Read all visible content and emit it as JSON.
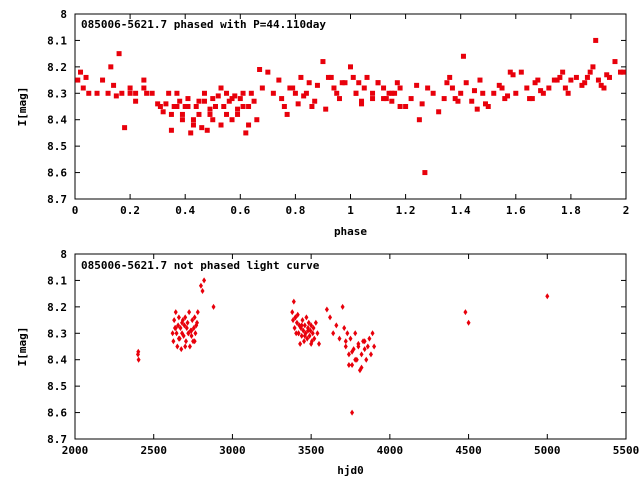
{
  "chart_data": [
    {
      "type": "scatter",
      "title": "085006-5621.7 phased with P=44.110day",
      "xlabel": "phase",
      "ylabel": "I[mag]",
      "xlim": [
        0,
        2
      ],
      "ylim": [
        8.7,
        8.0
      ],
      "y_inverted": true,
      "xticks": [
        "0",
        "0.2",
        "0.4",
        "0.6",
        "0.8",
        "1",
        "1.2",
        "1.4",
        "1.6",
        "1.8",
        "2"
      ],
      "yticks": [
        "8",
        "8.1",
        "8.2",
        "8.3",
        "8.4",
        "8.5",
        "8.6",
        "8.7"
      ],
      "grid": false,
      "marker_color": "#e8000b",
      "series": [
        {
          "x": [
            0.01,
            0.02,
            0.03,
            0.04,
            0.05,
            0.08,
            0.1,
            0.12,
            0.13,
            0.14,
            0.15,
            0.16,
            0.17,
            0.18,
            0.2,
            0.22,
            0.25,
            0.26,
            0.28,
            0.3,
            0.31,
            0.32,
            0.33,
            0.34,
            0.35,
            0.36,
            0.37,
            0.38,
            0.39,
            0.4,
            0.41,
            0.42,
            0.43,
            0.44,
            0.45,
            0.46,
            0.47,
            0.48,
            0.49,
            0.5,
            0.5,
            0.51,
            0.52,
            0.53,
            0.54,
            0.55,
            0.56,
            0.57,
            0.58,
            0.59,
            0.6,
            0.61,
            0.62,
            0.63,
            0.64,
            0.65,
            0.66,
            0.67,
            0.68,
            0.7,
            0.72,
            0.74,
            0.76,
            0.78,
            0.8,
            0.82,
            0.84,
            0.86,
            0.88,
            0.9,
            0.92,
            0.94,
            0.96,
            0.98,
            1.0,
            1.02,
            1.04,
            1.06,
            1.08,
            1.1,
            1.12,
            1.15,
            1.18,
            1.2,
            1.22,
            1.24,
            1.26,
            1.27,
            1.28,
            1.3,
            1.32,
            1.34,
            1.36,
            1.38,
            1.4,
            1.41,
            1.42,
            1.44,
            1.46,
            1.48,
            1.5,
            1.52,
            1.54,
            1.56,
            1.58,
            1.6,
            1.62,
            1.64,
            1.66,
            1.68,
            1.7,
            1.72,
            1.74,
            1.76,
            1.78,
            1.8,
            1.82,
            1.84,
            1.86,
            1.88,
            1.89,
            1.9,
            1.92,
            1.94,
            1.96,
            1.98,
            1.99,
            1.01,
            1.02,
            1.03,
            1.04,
            1.05,
            1.08,
            1.1,
            1.12,
            1.13,
            1.14,
            1.15,
            1.16,
            1.17,
            1.18,
            0.2,
            0.22,
            0.25,
            0.41,
            0.43,
            0.45,
            0.47,
            0.49,
            0.53,
            0.55,
            0.57,
            0.59,
            0.61,
            0.63,
            0.35,
            0.37,
            0.39,
            0.75,
            0.77,
            0.79,
            0.81,
            0.83,
            0.85,
            0.87,
            0.91,
            0.93,
            0.95,
            0.97,
            1.25,
            1.35,
            1.37,
            1.39,
            1.45,
            1.47,
            1.49,
            1.55,
            1.57,
            1.59,
            1.65,
            1.67,
            1.69,
            1.75,
            1.77,
            1.79,
            1.85,
            1.87,
            1.91,
            1.93
          ],
          "y": [
            8.25,
            8.22,
            8.28,
            8.24,
            8.3,
            8.3,
            8.25,
            8.3,
            8.2,
            8.27,
            8.31,
            8.15,
            8.3,
            8.43,
            8.28,
            8.3,
            8.25,
            8.3,
            8.3,
            8.34,
            8.35,
            8.37,
            8.34,
            8.3,
            8.44,
            8.35,
            8.3,
            8.33,
            8.38,
            8.35,
            8.32,
            8.45,
            8.4,
            8.35,
            8.33,
            8.43,
            8.3,
            8.44,
            8.38,
            8.32,
            8.4,
            8.35,
            8.31,
            8.42,
            8.35,
            8.3,
            8.33,
            8.4,
            8.31,
            8.36,
            8.32,
            8.35,
            8.45,
            8.42,
            8.3,
            8.33,
            8.4,
            8.21,
            8.28,
            8.22,
            8.3,
            8.25,
            8.35,
            8.28,
            8.3,
            8.24,
            8.3,
            8.35,
            8.27,
            8.18,
            8.24,
            8.28,
            8.32,
            8.26,
            8.2,
            8.3,
            8.33,
            8.24,
            8.3,
            8.26,
            8.32,
            8.3,
            8.28,
            8.35,
            8.32,
            8.27,
            8.34,
            8.6,
            8.28,
            8.3,
            8.37,
            8.32,
            8.24,
            8.32,
            8.3,
            8.16,
            8.26,
            8.33,
            8.36,
            8.3,
            8.35,
            8.3,
            8.27,
            8.32,
            8.22,
            8.3,
            8.22,
            8.28,
            8.32,
            8.25,
            8.3,
            8.28,
            8.25,
            8.24,
            8.28,
            8.25,
            8.24,
            8.27,
            8.24,
            8.2,
            8.1,
            8.25,
            8.28,
            8.24,
            8.18,
            8.22,
            8.22,
            8.24,
            8.3,
            8.26,
            8.34,
            8.28,
            8.32,
            8.26,
            8.28,
            8.32,
            8.3,
            8.33,
            8.3,
            8.26,
            8.35,
            8.3,
            8.33,
            8.28,
            8.35,
            8.42,
            8.38,
            8.33,
            8.36,
            8.28,
            8.38,
            8.32,
            8.38,
            8.3,
            8.35,
            8.38,
            8.35,
            8.4,
            8.32,
            8.38,
            8.28,
            8.34,
            8.31,
            8.26,
            8.33,
            8.36,
            8.24,
            8.3,
            8.26,
            8.4,
            8.26,
            8.28,
            8.33,
            8.29,
            8.25,
            8.34,
            8.28,
            8.31,
            8.23,
            8.32,
            8.26,
            8.29,
            8.25,
            8.22,
            8.3,
            8.26,
            8.22,
            8.27,
            8.23
          ]
        }
      ]
    },
    {
      "type": "scatter",
      "title": "085006-5621.7 not phased light curve",
      "xlabel": "hjd0",
      "ylabel": "I[mag]",
      "xlim": [
        2000,
        5500
      ],
      "ylim": [
        8.7,
        8.0
      ],
      "y_inverted": true,
      "xticks": [
        "2000",
        "2500",
        "3000",
        "3500",
        "4000",
        "4500",
        "5000",
        "5500"
      ],
      "yticks": [
        "8",
        "8.1",
        "8.2",
        "8.3",
        "8.4",
        "8.5",
        "8.6",
        "8.7"
      ],
      "grid": false,
      "marker_color": "#e8000b",
      "series": [
        {
          "x": [
            2400,
            2402,
            2404,
            2620,
            2625,
            2630,
            2635,
            2640,
            2645,
            2650,
            2655,
            2660,
            2665,
            2670,
            2675,
            2680,
            2685,
            2690,
            2695,
            2700,
            2705,
            2710,
            2715,
            2720,
            2725,
            2730,
            2735,
            2740,
            2745,
            2750,
            2755,
            2760,
            2765,
            2770,
            2775,
            2780,
            2800,
            2810,
            2820,
            2880,
            3380,
            3385,
            3390,
            3395,
            3400,
            3405,
            3410,
            3415,
            3420,
            3425,
            3430,
            3435,
            3440,
            3445,
            3450,
            3455,
            3460,
            3465,
            3470,
            3475,
            3480,
            3485,
            3490,
            3495,
            3500,
            3505,
            3510,
            3515,
            3520,
            3530,
            3540,
            3550,
            3600,
            3620,
            3640,
            3660,
            3680,
            3700,
            3710,
            3720,
            3730,
            3740,
            3750,
            3760,
            3770,
            3780,
            3790,
            3800,
            3810,
            3820,
            3830,
            3840,
            3850,
            3860,
            3870,
            3880,
            3890,
            3900,
            3760,
            4480,
            4500,
            5000,
            2640,
            2660,
            2680,
            2700,
            2720,
            2740,
            2760,
            3400,
            3420,
            3440,
            3460,
            3480,
            3500,
            3720,
            3740,
            3760,
            3780,
            3800,
            3820,
            3840
          ],
          "y": [
            8.38,
            8.37,
            8.4,
            8.3,
            8.33,
            8.25,
            8.28,
            8.22,
            8.3,
            8.35,
            8.27,
            8.24,
            8.32,
            8.28,
            8.36,
            8.3,
            8.25,
            8.31,
            8.27,
            8.24,
            8.33,
            8.28,
            8.26,
            8.3,
            8.22,
            8.35,
            8.29,
            8.31,
            8.25,
            8.33,
            8.28,
            8.24,
            8.3,
            8.27,
            8.26,
            8.22,
            8.12,
            8.14,
            8.1,
            8.2,
            8.22,
            8.25,
            8.18,
            8.28,
            8.24,
            8.3,
            8.26,
            8.23,
            8.3,
            8.27,
            8.34,
            8.28,
            8.31,
            8.25,
            8.29,
            8.33,
            8.27,
            8.3,
            8.24,
            8.32,
            8.28,
            8.26,
            8.31,
            8.29,
            8.27,
            8.33,
            8.3,
            8.28,
            8.32,
            8.26,
            8.3,
            8.34,
            8.21,
            8.24,
            8.3,
            8.27,
            8.32,
            8.2,
            8.28,
            8.35,
            8.3,
            8.38,
            8.32,
            8.42,
            8.36,
            8.3,
            8.4,
            8.34,
            8.44,
            8.38,
            8.33,
            8.36,
            8.4,
            8.35,
            8.32,
            8.38,
            8.3,
            8.35,
            8.6,
            8.22,
            8.26,
            8.16,
            8.28,
            8.32,
            8.26,
            8.35,
            8.3,
            8.29,
            8.33,
            8.24,
            8.3,
            8.27,
            8.31,
            8.29,
            8.34,
            8.33,
            8.42,
            8.37,
            8.4,
            8.35,
            8.43,
            8.33
          ]
        }
      ]
    }
  ]
}
